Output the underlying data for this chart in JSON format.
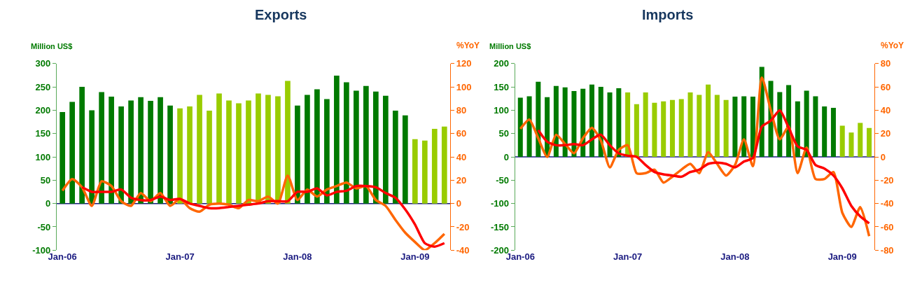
{
  "chart_data": [
    {
      "type": "bar",
      "title": "Exports",
      "ylabel": "Million US$",
      "y2label": "%YoY",
      "categories": [
        "Jan-06",
        null,
        null,
        null,
        null,
        null,
        null,
        null,
        null,
        null,
        null,
        null,
        "Jan-07",
        null,
        null,
        null,
        null,
        null,
        null,
        null,
        null,
        null,
        null,
        null,
        "Jan-08",
        null,
        null,
        null,
        null,
        null,
        null,
        null,
        null,
        null,
        null,
        null,
        "Jan-09",
        null,
        null,
        null
      ],
      "series": [
        {
          "colors": [
            "#007a00",
            "#007a00",
            "#007a00",
            "#007a00",
            "#007a00",
            "#007a00",
            "#007a00",
            "#007a00",
            "#007a00",
            "#007a00",
            "#007a00",
            "#007a00",
            "#99cc00",
            "#99cc00",
            "#99cc00",
            "#99cc00",
            "#99cc00",
            "#99cc00",
            "#99cc00",
            "#99cc00",
            "#99cc00",
            "#99cc00",
            "#99cc00",
            "#99cc00",
            "#007a00",
            "#007a00",
            "#007a00",
            "#007a00",
            "#007a00",
            "#007a00",
            "#007a00",
            "#007a00",
            "#007a00",
            "#007a00",
            "#007a00",
            "#007a00",
            "#99cc00",
            "#99cc00",
            "#99cc00",
            "#99cc00"
          ],
          "values": [
            196,
            218,
            250,
            200,
            239,
            229,
            208,
            221,
            228,
            220,
            228,
            210,
            204,
            208,
            233,
            199,
            236,
            221,
            215,
            221,
            236,
            233,
            230,
            263,
            210,
            233,
            245,
            224,
            274,
            260,
            242,
            252,
            240,
            231,
            199,
            189,
            138,
            135,
            160,
            165
          ]
        },
        {
          "type": "line",
          "axis": "y2",
          "color": "#ff6600",
          "values": [
            11,
            21,
            14,
            -2,
            19,
            15,
            2,
            -2,
            9,
            2,
            9,
            -2,
            4,
            -4,
            -7,
            -1,
            0,
            -1,
            -4,
            3,
            2,
            6,
            0,
            24,
            3,
            12,
            6,
            12,
            15,
            18,
            13,
            15,
            3,
            -2,
            -14,
            -25,
            -33,
            -40,
            -34,
            -26
          ]
        },
        {
          "type": "line",
          "axis": "y2",
          "color": "#ff0000",
          "values": [
            null,
            null,
            14,
            10,
            10,
            10,
            12,
            5,
            3,
            3,
            6,
            3,
            4,
            0,
            -2,
            -4,
            -4,
            -3,
            -2,
            -1,
            0,
            2,
            2,
            2,
            10,
            10,
            13,
            7,
            10,
            11,
            15,
            15,
            14,
            9,
            5,
            -5,
            -18,
            -34,
            -37,
            -34
          ]
        }
      ],
      "ylim": [
        -100,
        300
      ],
      "yticks": [
        -100,
        -50,
        0,
        50,
        100,
        150,
        200,
        250,
        300
      ],
      "y2lim": [
        -40,
        120
      ],
      "y2ticks": [
        -40,
        -20,
        0,
        20,
        40,
        60,
        80,
        100,
        120
      ],
      "grid": false,
      "ref_lines": [
        {
          "axis": "y",
          "value": 0,
          "color": "#1a1a80"
        }
      ]
    },
    {
      "type": "bar",
      "title": "Imports",
      "ylabel": "Million US$",
      "y2label": "%YoY",
      "categories": [
        "Jan-06",
        null,
        null,
        null,
        null,
        null,
        null,
        null,
        null,
        null,
        null,
        null,
        "Jan-07",
        null,
        null,
        null,
        null,
        null,
        null,
        null,
        null,
        null,
        null,
        null,
        "Jan-08",
        null,
        null,
        null,
        null,
        null,
        null,
        null,
        null,
        null,
        null,
        null,
        "Jan-09",
        null,
        null,
        null
      ],
      "series": [
        {
          "colors": [
            "#007a00",
            "#007a00",
            "#007a00",
            "#007a00",
            "#007a00",
            "#007a00",
            "#007a00",
            "#007a00",
            "#007a00",
            "#007a00",
            "#007a00",
            "#007a00",
            "#99cc00",
            "#99cc00",
            "#99cc00",
            "#99cc00",
            "#99cc00",
            "#99cc00",
            "#99cc00",
            "#99cc00",
            "#99cc00",
            "#99cc00",
            "#99cc00",
            "#99cc00",
            "#007a00",
            "#007a00",
            "#007a00",
            "#007a00",
            "#007a00",
            "#007a00",
            "#007a00",
            "#007a00",
            "#007a00",
            "#007a00",
            "#007a00",
            "#007a00",
            "#99cc00",
            "#99cc00",
            "#99cc00",
            "#99cc00"
          ],
          "values": [
            127,
            130,
            161,
            128,
            152,
            149,
            141,
            146,
            155,
            150,
            138,
            147,
            138,
            113,
            138,
            116,
            119,
            122,
            124,
            138,
            133,
            155,
            133,
            122,
            129,
            130,
            129,
            193,
            163,
            139,
            154,
            119,
            142,
            130,
            108,
            105,
            67,
            52,
            73,
            62
          ]
        },
        {
          "type": "line",
          "axis": "y2",
          "color": "#ff6600",
          "values": [
            24,
            32,
            16,
            0,
            19,
            11,
            3,
            16,
            25,
            14,
            -9,
            6,
            10,
            -14,
            -14,
            -11,
            -22,
            -17,
            -11,
            -6,
            -14,
            4,
            -6,
            -16,
            -7,
            15,
            -8,
            68,
            40,
            15,
            26,
            -14,
            8,
            -19,
            -19,
            -13,
            -48,
            -60,
            -43,
            -68
          ]
        },
        {
          "type": "line",
          "axis": "y2",
          "color": "#ff0000",
          "values": [
            null,
            null,
            23,
            13,
            10,
            10,
            11,
            10,
            15,
            19,
            10,
            3,
            1,
            0,
            -7,
            -13,
            -15,
            -16,
            -17,
            -13,
            -11,
            -6,
            -5,
            -6,
            -9,
            -4,
            -1,
            26,
            31,
            40,
            25,
            9,
            6,
            -7,
            -10,
            -16,
            -27,
            -42,
            -51,
            -57
          ]
        }
      ],
      "ylim": [
        -200,
        200
      ],
      "yticks": [
        -200,
        -150,
        -100,
        -50,
        0,
        50,
        100,
        150,
        200
      ],
      "y2lim": [
        -80,
        80
      ],
      "y2ticks": [
        -80,
        -60,
        -40,
        -20,
        0,
        20,
        40,
        60,
        80
      ],
      "grid": false,
      "ref_lines": [
        {
          "axis": "y",
          "value": 0,
          "color": "#1a1a80"
        }
      ]
    }
  ]
}
